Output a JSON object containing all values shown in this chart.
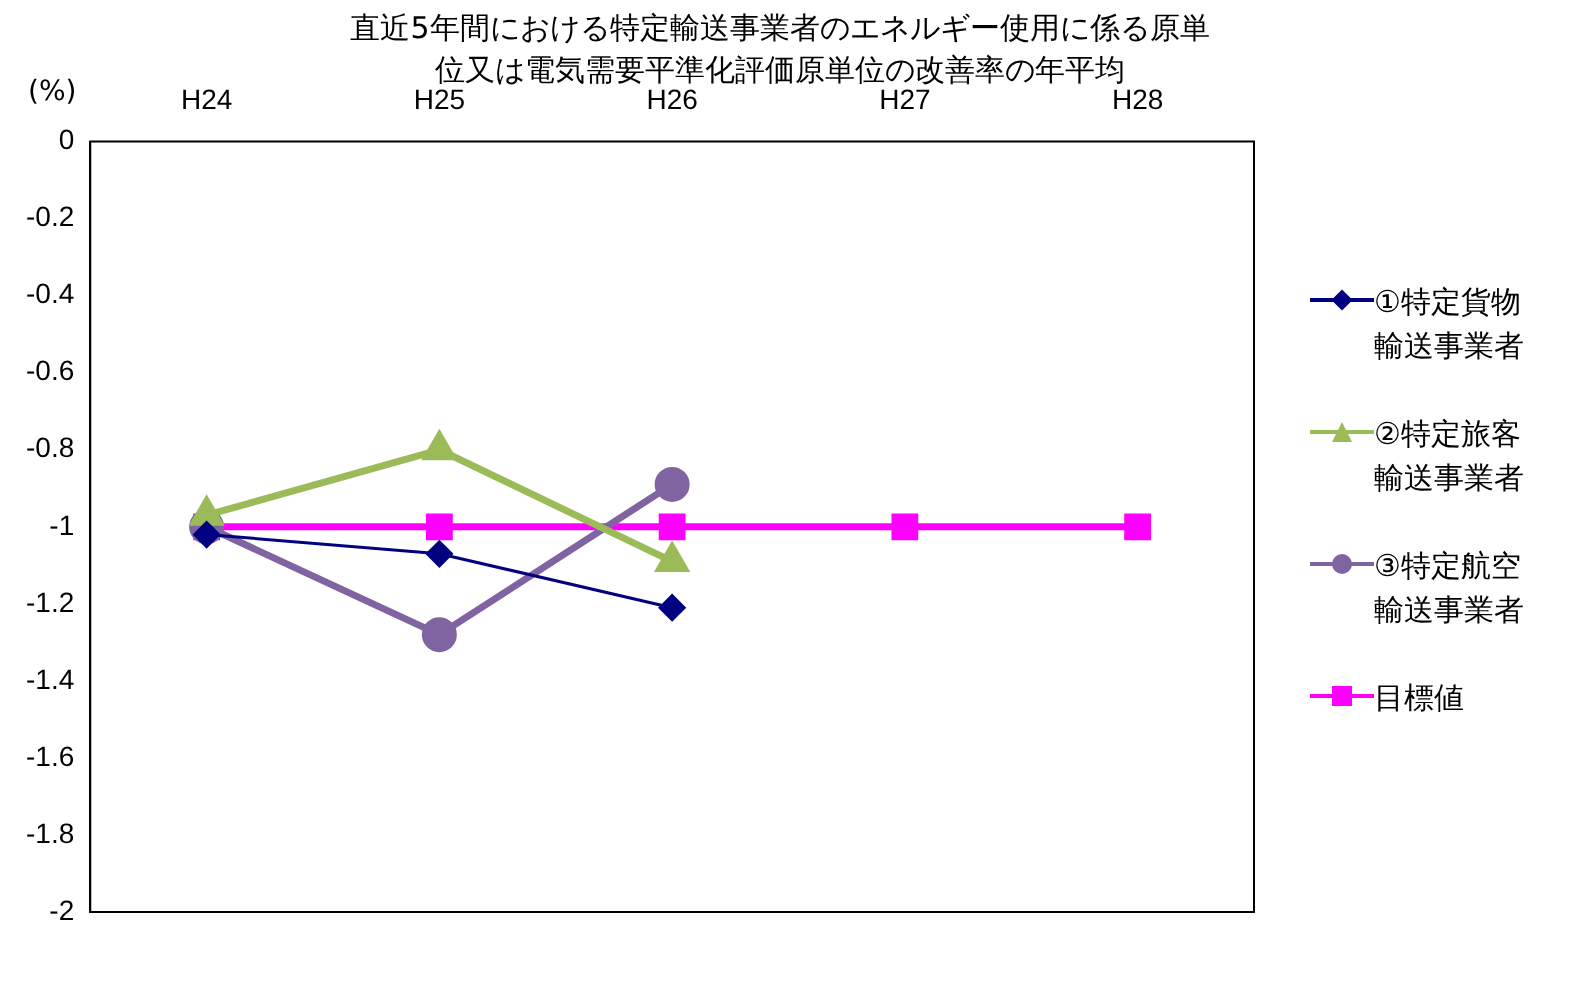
{
  "chart_data": {
    "type": "line",
    "title": "直近5年間における特定輸送事業者のエネルギー使用に係る原単位又は電気需要平準化評価原単位の改善率の年平均",
    "ylabel": "(%)",
    "categories": [
      "H24",
      "H25",
      "H26",
      "H27",
      "H28"
    ],
    "series": [
      {
        "name": "①特定貨物輸送事業者",
        "color": "#000080",
        "marker": "diamond",
        "values": [
          -1.02,
          -1.07,
          -1.21,
          null,
          null
        ]
      },
      {
        "name": "②特定旅客輸送事業者",
        "color": "#9bbb59",
        "marker": "triangle",
        "values": [
          -0.97,
          -0.8,
          -1.09,
          null,
          null
        ]
      },
      {
        "name": "③特定航空輸送事業者",
        "color": "#8064a2",
        "marker": "circle",
        "values": [
          -1.0,
          -1.28,
          -0.89,
          null,
          null
        ]
      },
      {
        "name": "目標値",
        "color": "#ff00ff",
        "marker": "square",
        "values": [
          -1,
          -1,
          -1,
          -1,
          -1
        ]
      }
    ],
    "ylim": [
      -2,
      0
    ],
    "yticks": [
      0,
      -0.2,
      -0.4,
      -0.6,
      -0.8,
      -1,
      -1.2,
      -1.4,
      -1.6,
      -1.8,
      -2
    ],
    "grid": false,
    "legend": "right"
  }
}
